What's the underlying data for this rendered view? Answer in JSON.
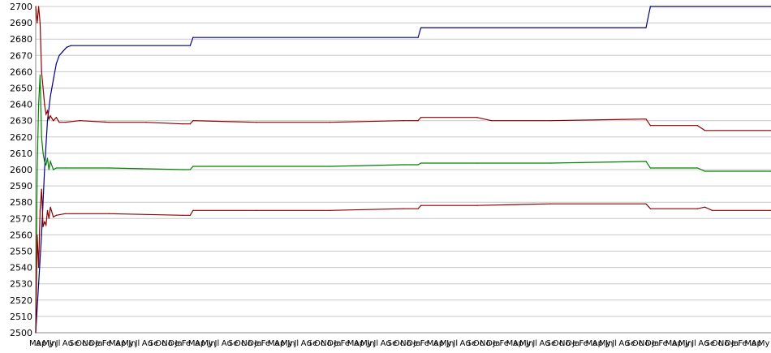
{
  "chart_data": {
    "type": "line",
    "title": "",
    "xlabel": "",
    "ylabel": "",
    "ylim": [
      2500,
      2700
    ],
    "yticks": [
      2500,
      2510,
      2520,
      2530,
      2540,
      2550,
      2560,
      2570,
      2580,
      2590,
      2600,
      2610,
      2620,
      2630,
      2640,
      2650,
      2660,
      2670,
      2680,
      2690,
      2700
    ],
    "grid": true,
    "legend": "none",
    "x_range": [
      0,
      1000
    ],
    "x_tick_labels": [
      "Ma",
      "Ap",
      "My",
      "Jn",
      "Jl",
      "Au",
      "Se",
      "Oc",
      "No",
      "De",
      "Ja",
      "Fe",
      "Ma",
      "Ap",
      "My",
      "Jn",
      "Jl",
      "Au",
      "Se",
      "Oc",
      "No",
      "De",
      "Ja",
      "Fe",
      "Ma",
      "Ap",
      "My",
      "Jn",
      "Jl",
      "Au",
      "Se",
      "Oc",
      "No",
      "De",
      "Ja",
      "Fe",
      "Ma",
      "Ap",
      "My",
      "Jn",
      "Jl",
      "Au",
      "Se",
      "Oc",
      "No",
      "De",
      "Ja",
      "Fe",
      "Ma",
      "Ap",
      "My",
      "Jn",
      "Jl",
      "Au",
      "Se",
      "Oc",
      "No",
      "De",
      "Ja",
      "Fe",
      "Ma",
      "Ap",
      "My",
      "Jn",
      "Jl",
      "Au",
      "Se",
      "Oc",
      "No",
      "De",
      "Ja",
      "Fe",
      "Ma",
      "Ap",
      "My",
      "Jn",
      "Jl",
      "Au",
      "Se",
      "Oc",
      "No",
      "De",
      "Ja",
      "Fe",
      "Ma",
      "Ap",
      "My",
      "Jn",
      "Jl",
      "Au",
      "Se",
      "Oc",
      "No",
      "De",
      "Ja",
      "Fe",
      "Ma",
      "Ap",
      "My",
      "Jn",
      "Jl",
      "Au",
      "Se",
      "Oc",
      "No",
      "De",
      "Ja",
      "Fe",
      "Ma",
      "Ap",
      "My"
    ],
    "series": [
      {
        "color": "#000080",
        "points": [
          [
            0,
            2500
          ],
          [
            4,
            2530
          ],
          [
            8,
            2560
          ],
          [
            12,
            2600
          ],
          [
            16,
            2630
          ],
          [
            20,
            2645
          ],
          [
            24,
            2655
          ],
          [
            28,
            2665
          ],
          [
            32,
            2670
          ],
          [
            36,
            2672
          ],
          [
            42,
            2675
          ],
          [
            48,
            2676
          ],
          [
            210,
            2676
          ],
          [
            214,
            2681
          ],
          [
            520,
            2681
          ],
          [
            524,
            2687
          ],
          [
            830,
            2687
          ],
          [
            836,
            2700
          ],
          [
            1000,
            2700
          ]
        ]
      },
      {
        "color": "#8b0000",
        "points": [
          [
            0,
            2700
          ],
          [
            2,
            2690
          ],
          [
            4,
            2700
          ],
          [
            6,
            2690
          ],
          [
            8,
            2660
          ],
          [
            10,
            2650
          ],
          [
            12,
            2640
          ],
          [
            14,
            2634
          ],
          [
            16,
            2636
          ],
          [
            18,
            2631
          ],
          [
            20,
            2633
          ],
          [
            24,
            2630
          ],
          [
            28,
            2632
          ],
          [
            32,
            2629
          ],
          [
            40,
            2629
          ],
          [
            60,
            2630
          ],
          [
            100,
            2629
          ],
          [
            150,
            2629
          ],
          [
            200,
            2628
          ],
          [
            210,
            2628
          ],
          [
            214,
            2630
          ],
          [
            300,
            2629
          ],
          [
            400,
            2629
          ],
          [
            500,
            2630
          ],
          [
            520,
            2630
          ],
          [
            524,
            2632
          ],
          [
            600,
            2632
          ],
          [
            620,
            2630
          ],
          [
            700,
            2630
          ],
          [
            830,
            2631
          ],
          [
            836,
            2627
          ],
          [
            900,
            2627
          ],
          [
            910,
            2624
          ],
          [
            1000,
            2624
          ]
        ]
      },
      {
        "color": "#008000",
        "points": [
          [
            0,
            2500
          ],
          [
            2,
            2600
          ],
          [
            4,
            2640
          ],
          [
            6,
            2658
          ],
          [
            8,
            2620
          ],
          [
            10,
            2610
          ],
          [
            12,
            2605
          ],
          [
            14,
            2603
          ],
          [
            16,
            2607
          ],
          [
            18,
            2600
          ],
          [
            20,
            2605
          ],
          [
            24,
            2600
          ],
          [
            28,
            2601
          ],
          [
            40,
            2601
          ],
          [
            100,
            2601
          ],
          [
            200,
            2600
          ],
          [
            210,
            2600
          ],
          [
            214,
            2602
          ],
          [
            300,
            2602
          ],
          [
            400,
            2602
          ],
          [
            500,
            2603
          ],
          [
            520,
            2603
          ],
          [
            524,
            2604
          ],
          [
            600,
            2604
          ],
          [
            700,
            2604
          ],
          [
            830,
            2605
          ],
          [
            836,
            2601
          ],
          [
            900,
            2601
          ],
          [
            910,
            2599
          ],
          [
            1000,
            2599
          ]
        ]
      },
      {
        "color": "#8b0000",
        "points": [
          [
            0,
            2500
          ],
          [
            2,
            2560
          ],
          [
            4,
            2540
          ],
          [
            6,
            2575
          ],
          [
            8,
            2588
          ],
          [
            10,
            2565
          ],
          [
            12,
            2568
          ],
          [
            14,
            2566
          ],
          [
            16,
            2575
          ],
          [
            18,
            2570
          ],
          [
            20,
            2577
          ],
          [
            24,
            2571
          ],
          [
            28,
            2572
          ],
          [
            40,
            2573
          ],
          [
            100,
            2573
          ],
          [
            200,
            2572
          ],
          [
            210,
            2572
          ],
          [
            214,
            2575
          ],
          [
            300,
            2575
          ],
          [
            400,
            2575
          ],
          [
            500,
            2576
          ],
          [
            520,
            2576
          ],
          [
            524,
            2578
          ],
          [
            600,
            2578
          ],
          [
            700,
            2579
          ],
          [
            830,
            2579
          ],
          [
            836,
            2576
          ],
          [
            900,
            2576
          ],
          [
            910,
            2577
          ],
          [
            920,
            2575
          ],
          [
            1000,
            2575
          ]
        ]
      }
    ]
  }
}
